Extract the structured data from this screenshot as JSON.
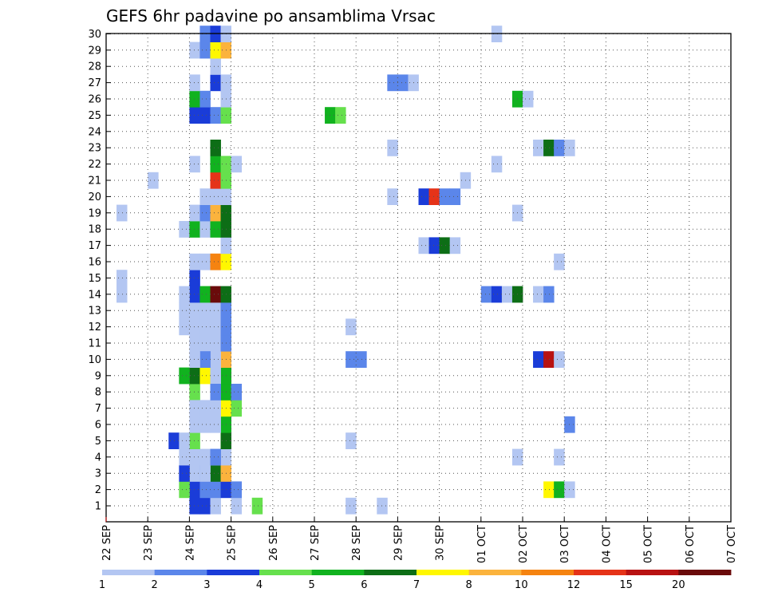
{
  "chart_data": {
    "type": "heatmap",
    "title": "GEFS 6hr padavine po ansamblima Vrsac",
    "x_tick_labels": [
      "22 SEP",
      "23 SEP",
      "24 SEP",
      "25 SEP",
      "26 SEP",
      "27 SEP",
      "28 SEP",
      "29 SEP",
      "30 SEP",
      "01 OCT",
      "02 OCT",
      "03 OCT",
      "04 OCT",
      "05 OCT",
      "06 OCT",
      "07 OCT"
    ],
    "y_tick_labels": [
      "1",
      "2",
      "3",
      "4",
      "5",
      "6",
      "7",
      "8",
      "9",
      "10",
      "11",
      "12",
      "13",
      "14",
      "15",
      "16",
      "17",
      "18",
      "19",
      "20",
      "21",
      "22",
      "23",
      "24",
      "25",
      "26",
      "27",
      "28",
      "29",
      "30"
    ],
    "x_range": [
      0,
      60
    ],
    "y_range": [
      1,
      30
    ],
    "x_unit": "6-hour steps from 22 SEP",
    "grid": true,
    "colorbar": {
      "labels": [
        "1",
        "2",
        "3",
        "4",
        "5",
        "6",
        "7",
        "8",
        "10",
        "12",
        "15",
        "20"
      ],
      "colors": [
        "#b3c6f2",
        "#5b86ea",
        "#1a3cd8",
        "#66e04d",
        "#11b21f",
        "#0d6e16",
        "#fff700",
        "#fbb33d",
        "#f58310",
        "#e53318",
        "#b81212",
        "#6a0b0b"
      ]
    },
    "cells": [
      [
        8,
        1,
        2
      ],
      [
        8,
        2,
        2
      ],
      [
        8,
        3,
        0
      ],
      [
        8,
        4,
        0
      ],
      [
        9,
        1,
        2
      ],
      [
        9,
        2,
        1
      ],
      [
        9,
        3,
        1
      ],
      [
        9,
        4,
        0
      ],
      [
        10,
        1,
        0
      ],
      [
        10,
        2,
        1
      ],
      [
        10,
        3,
        5
      ],
      [
        10,
        4,
        0
      ],
      [
        11,
        2,
        2
      ],
      [
        11,
        3,
        7
      ],
      [
        11,
        4,
        0
      ],
      [
        7,
        2,
        3
      ],
      [
        7,
        3,
        2
      ],
      [
        7,
        4,
        0
      ],
      [
        9,
        3,
        0
      ],
      [
        10,
        4,
        1
      ],
      [
        11,
        5,
        5
      ],
      [
        11,
        6,
        4
      ],
      [
        12,
        1,
        0
      ],
      [
        12,
        2,
        1
      ],
      [
        14,
        1,
        3
      ],
      [
        11,
        7,
        6
      ],
      [
        11,
        8,
        4
      ],
      [
        11,
        9,
        4
      ],
      [
        11,
        10,
        7
      ],
      [
        8,
        8,
        3
      ],
      [
        8,
        9,
        5
      ],
      [
        9,
        9,
        6
      ],
      [
        10,
        9,
        0
      ],
      [
        12,
        7,
        3
      ],
      [
        12,
        8,
        1
      ],
      [
        8,
        5,
        3
      ],
      [
        6,
        5,
        2
      ],
      [
        7,
        5,
        0
      ],
      [
        8,
        6,
        0
      ],
      [
        9,
        6,
        0
      ],
      [
        10,
        6,
        0
      ],
      [
        8,
        7,
        0
      ],
      [
        9,
        7,
        0
      ],
      [
        10,
        7,
        0
      ],
      [
        10,
        8,
        1
      ],
      [
        10,
        11,
        0
      ],
      [
        10,
        12,
        0
      ],
      [
        8,
        12,
        0
      ],
      [
        9,
        12,
        0
      ],
      [
        10,
        13,
        0
      ],
      [
        7,
        9,
        4
      ],
      [
        8,
        11,
        0
      ],
      [
        9,
        11,
        0
      ],
      [
        10,
        10,
        0
      ],
      [
        9,
        10,
        1
      ],
      [
        8,
        10,
        0
      ],
      [
        11,
        11,
        1
      ],
      [
        11,
        12,
        1
      ],
      [
        11,
        13,
        1
      ],
      [
        7,
        12,
        0
      ],
      [
        7,
        13,
        0
      ],
      [
        8,
        13,
        0
      ],
      [
        9,
        13,
        0
      ],
      [
        8,
        14,
        2
      ],
      [
        7,
        14,
        0
      ],
      [
        9,
        14,
        4
      ],
      [
        10,
        14,
        11
      ],
      [
        11,
        14,
        5
      ],
      [
        8,
        15,
        2
      ],
      [
        8,
        16,
        0
      ],
      [
        9,
        16,
        0
      ],
      [
        10,
        16,
        8
      ],
      [
        11,
        16,
        6
      ],
      [
        11,
        17,
        0
      ],
      [
        7,
        18,
        0
      ],
      [
        8,
        18,
        4
      ],
      [
        9,
        18,
        0
      ],
      [
        10,
        18,
        4
      ],
      [
        11,
        18,
        5
      ],
      [
        8,
        19,
        0
      ],
      [
        9,
        19,
        1
      ],
      [
        10,
        19,
        7
      ],
      [
        11,
        19,
        5
      ],
      [
        9,
        20,
        0
      ],
      [
        10,
        20,
        0
      ],
      [
        11,
        20,
        0
      ],
      [
        10,
        21,
        9
      ],
      [
        11,
        21,
        3
      ],
      [
        8,
        22,
        0
      ],
      [
        10,
        22,
        4
      ],
      [
        11,
        22,
        3
      ],
      [
        12,
        22,
        0
      ],
      [
        10,
        23,
        5
      ],
      [
        8,
        25,
        2
      ],
      [
        9,
        25,
        2
      ],
      [
        10,
        25,
        1
      ],
      [
        11,
        25,
        3
      ],
      [
        8,
        26,
        4
      ],
      [
        9,
        26,
        1
      ],
      [
        11,
        26,
        0
      ],
      [
        8,
        27,
        0
      ],
      [
        10,
        27,
        2
      ],
      [
        11,
        27,
        0
      ],
      [
        10,
        28,
        0
      ],
      [
        8,
        29,
        0
      ],
      [
        9,
        29,
        1
      ],
      [
        10,
        29,
        6
      ],
      [
        11,
        29,
        7
      ],
      [
        9,
        30,
        1
      ],
      [
        10,
        30,
        2
      ],
      [
        11,
        30,
        0
      ],
      [
        1,
        14,
        0
      ],
      [
        1,
        15,
        0
      ],
      [
        1,
        19,
        0
      ],
      [
        4,
        21,
        0
      ],
      [
        21,
        25,
        4
      ],
      [
        22,
        25,
        3
      ],
      [
        23,
        1,
        0
      ],
      [
        23,
        5,
        0
      ],
      [
        23,
        12,
        0
      ],
      [
        23,
        10,
        1
      ],
      [
        24,
        10,
        1
      ],
      [
        26,
        1,
        0
      ],
      [
        27,
        20,
        0
      ],
      [
        27,
        23,
        0
      ],
      [
        27,
        27,
        1
      ],
      [
        28,
        27,
        1
      ],
      [
        29,
        27,
        0
      ],
      [
        30,
        17,
        0
      ],
      [
        30,
        20,
        2
      ],
      [
        31,
        17,
        2
      ],
      [
        31,
        20,
        9
      ],
      [
        32,
        17,
        5
      ],
      [
        32,
        20,
        1
      ],
      [
        33,
        17,
        0
      ],
      [
        33,
        20,
        1
      ],
      [
        34,
        21,
        0
      ],
      [
        36,
        14,
        1
      ],
      [
        37,
        14,
        2
      ],
      [
        38,
        14,
        0
      ],
      [
        37,
        22,
        0
      ],
      [
        37,
        30,
        0
      ],
      [
        39,
        14,
        5
      ],
      [
        39,
        19,
        0
      ],
      [
        39,
        26,
        4
      ],
      [
        40,
        26,
        0
      ],
      [
        39,
        4,
        0
      ],
      [
        41,
        23,
        0
      ],
      [
        42,
        23,
        5
      ],
      [
        43,
        23,
        1
      ],
      [
        44,
        23,
        0
      ],
      [
        41,
        14,
        0
      ],
      [
        42,
        14,
        1
      ],
      [
        41,
        10,
        2
      ],
      [
        42,
        10,
        10
      ],
      [
        43,
        10,
        0
      ],
      [
        42,
        2,
        6
      ],
      [
        43,
        2,
        4
      ],
      [
        44,
        2,
        0
      ],
      [
        43,
        4,
        0
      ],
      [
        43,
        16,
        0
      ],
      [
        44,
        6,
        1
      ]
    ]
  }
}
